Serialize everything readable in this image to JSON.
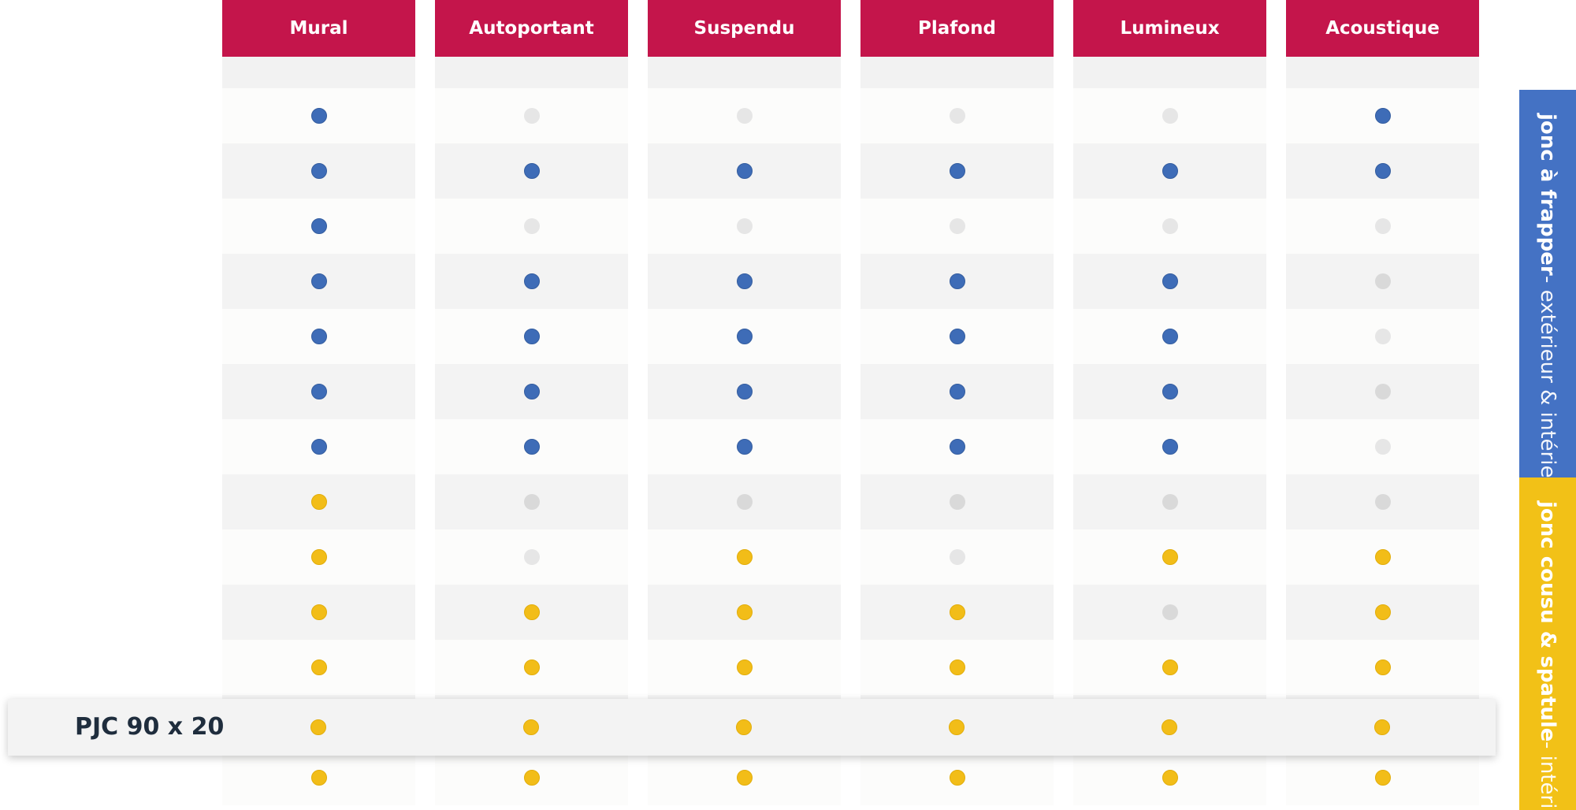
{
  "colors": {
    "header_bg": "#c4154b",
    "spacer_bg": "#f2f2f2",
    "row_even_bg": "#fcfcfb",
    "row_odd_bg": "#f3f3f3",
    "dot_blue": "#3e6cb7",
    "dot_yellow": "#f2bd18",
    "dot_gray_light": "#e6e6e6",
    "dot_gray_mid": "#d9d9d9",
    "band_blue": "#4472c4",
    "band_yellow": "#f2c117"
  },
  "columns": [
    {
      "label": "Mural",
      "values": [
        "blue",
        "blue",
        "blue",
        "blue",
        "blue",
        "blue",
        "blue",
        "yellow",
        "yellow",
        "yellow",
        "yellow",
        "yellow",
        "yellow"
      ]
    },
    {
      "label": "Autoportant",
      "values": [
        "gray",
        "blue",
        "gray",
        "blue",
        "blue",
        "blue",
        "blue",
        "gray2",
        "gray",
        "yellow",
        "yellow",
        "yellow",
        "yellow"
      ]
    },
    {
      "label": "Suspendu",
      "values": [
        "gray",
        "blue",
        "gray",
        "blue",
        "blue",
        "blue",
        "blue",
        "gray2",
        "yellow",
        "yellow",
        "yellow",
        "yellow",
        "yellow"
      ]
    },
    {
      "label": "Plafond",
      "values": [
        "gray",
        "blue",
        "gray",
        "blue",
        "blue",
        "blue",
        "blue",
        "gray2",
        "gray",
        "yellow",
        "yellow",
        "yellow",
        "yellow"
      ]
    },
    {
      "label": "Lumineux",
      "values": [
        "gray",
        "blue",
        "gray",
        "blue",
        "blue",
        "blue",
        "blue",
        "gray2",
        "yellow",
        "gray2",
        "yellow",
        "yellow",
        "yellow"
      ]
    },
    {
      "label": "Acoustique",
      "values": [
        "blue",
        "blue",
        "gray",
        "gray2",
        "gray",
        "gray2",
        "gray",
        "gray2",
        "yellow",
        "yellow",
        "yellow",
        "yellow",
        "yellow"
      ]
    }
  ],
  "highlight_row": {
    "label": "PJC 90 x 20",
    "row_index": 11
  },
  "bands": [
    {
      "bold": "jonc à frapper",
      "rest": " - extérieur & intérieur",
      "color": "blue"
    },
    {
      "bold": "jonc cousu & spatule",
      "rest": " - intérieur",
      "color": "yellow"
    }
  ]
}
